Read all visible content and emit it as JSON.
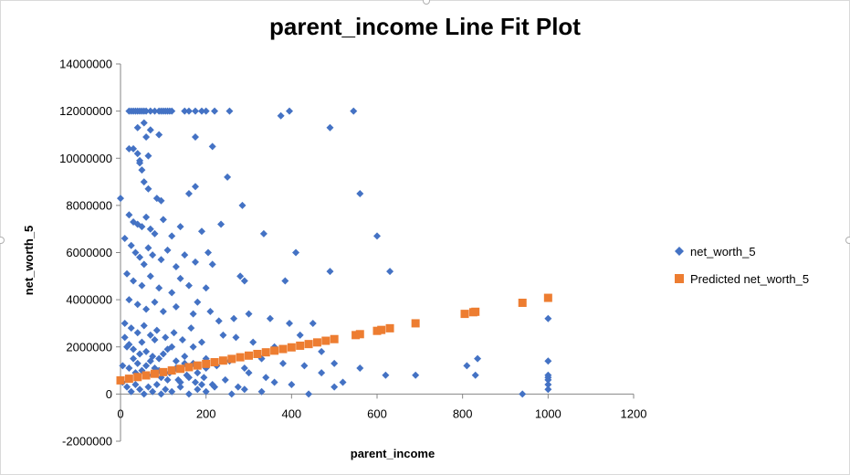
{
  "chart_data": {
    "type": "scatter",
    "title": "parent_income Line Fit  Plot",
    "xlabel": "parent_income",
    "ylabel": "net_worth_5",
    "xlim": [
      0,
      1200
    ],
    "ylim": [
      -2000000,
      14000000
    ],
    "x_ticks": [
      "0",
      "200",
      "400",
      "600",
      "800",
      "1000",
      "1200"
    ],
    "y_ticks": [
      "-2000000",
      "0",
      "2000000",
      "4000000",
      "6000000",
      "8000000",
      "10000000",
      "12000000",
      "14000000"
    ],
    "legend_position": "right",
    "grid": false,
    "series": [
      {
        "name": "net_worth_5",
        "marker": "diamond",
        "color": "#4472C4",
        "points": [
          [
            20,
            12000000
          ],
          [
            25,
            12000000
          ],
          [
            30,
            12000000
          ],
          [
            35,
            12000000
          ],
          [
            40,
            12000000
          ],
          [
            45,
            12000000
          ],
          [
            50,
            12000000
          ],
          [
            55,
            12000000
          ],
          [
            60,
            12000000
          ],
          [
            70,
            12000000
          ],
          [
            80,
            12000000
          ],
          [
            90,
            12000000
          ],
          [
            95,
            12000000
          ],
          [
            100,
            12000000
          ],
          [
            105,
            12000000
          ],
          [
            110,
            12000000
          ],
          [
            115,
            12000000
          ],
          [
            120,
            12000000
          ],
          [
            150,
            12000000
          ],
          [
            160,
            12000000
          ],
          [
            175,
            12000000
          ],
          [
            190,
            12000000
          ],
          [
            200,
            12000000
          ],
          [
            220,
            12000000
          ],
          [
            255,
            12000000
          ],
          [
            375,
            11800000
          ],
          [
            395,
            12000000
          ],
          [
            545,
            12000000
          ],
          [
            40,
            11300000
          ],
          [
            55,
            11500000
          ],
          [
            70,
            11200000
          ],
          [
            90,
            11000000
          ],
          [
            175,
            10900000
          ],
          [
            490,
            11300000
          ],
          [
            60,
            10900000
          ],
          [
            20,
            10400000
          ],
          [
            30,
            10400000
          ],
          [
            40,
            10200000
          ],
          [
            45,
            9900000
          ],
          [
            50,
            9500000
          ],
          [
            65,
            10100000
          ],
          [
            215,
            10500000
          ],
          [
            45,
            9800000
          ],
          [
            55,
            9000000
          ],
          [
            65,
            8700000
          ],
          [
            85,
            8300000
          ],
          [
            95,
            8200000
          ],
          [
            160,
            8500000
          ],
          [
            175,
            8800000
          ],
          [
            250,
            9200000
          ],
          [
            0,
            8300000
          ],
          [
            560,
            8500000
          ],
          [
            20,
            7600000
          ],
          [
            30,
            7300000
          ],
          [
            40,
            7200000
          ],
          [
            50,
            7100000
          ],
          [
            60,
            7500000
          ],
          [
            70,
            7000000
          ],
          [
            80,
            6800000
          ],
          [
            100,
            7400000
          ],
          [
            120,
            6700000
          ],
          [
            140,
            7100000
          ],
          [
            190,
            6900000
          ],
          [
            235,
            7200000
          ],
          [
            285,
            8000000
          ],
          [
            10,
            6600000
          ],
          [
            25,
            6300000
          ],
          [
            35,
            6000000
          ],
          [
            45,
            5800000
          ],
          [
            55,
            5500000
          ],
          [
            65,
            6200000
          ],
          [
            75,
            5900000
          ],
          [
            95,
            5700000
          ],
          [
            110,
            6100000
          ],
          [
            130,
            5400000
          ],
          [
            150,
            5900000
          ],
          [
            175,
            5600000
          ],
          [
            205,
            6000000
          ],
          [
            215,
            5500000
          ],
          [
            335,
            6800000
          ],
          [
            410,
            6000000
          ],
          [
            600,
            6700000
          ],
          [
            15,
            5100000
          ],
          [
            30,
            4800000
          ],
          [
            50,
            4600000
          ],
          [
            70,
            5000000
          ],
          [
            90,
            4500000
          ],
          [
            120,
            4300000
          ],
          [
            140,
            4900000
          ],
          [
            160,
            4600000
          ],
          [
            200,
            4500000
          ],
          [
            280,
            5000000
          ],
          [
            290,
            4800000
          ],
          [
            385,
            4800000
          ],
          [
            490,
            5200000
          ],
          [
            630,
            5200000
          ],
          [
            20,
            4000000
          ],
          [
            40,
            3800000
          ],
          [
            60,
            3600000
          ],
          [
            80,
            3900000
          ],
          [
            100,
            3500000
          ],
          [
            130,
            3700000
          ],
          [
            170,
            3400000
          ],
          [
            180,
            3900000
          ],
          [
            210,
            3500000
          ],
          [
            230,
            3100000
          ],
          [
            265,
            3200000
          ],
          [
            300,
            3400000
          ],
          [
            350,
            3200000
          ],
          [
            395,
            3000000
          ],
          [
            450,
            3000000
          ],
          [
            1000,
            3200000
          ],
          [
            10,
            3000000
          ],
          [
            25,
            2800000
          ],
          [
            40,
            2600000
          ],
          [
            55,
            2900000
          ],
          [
            70,
            2500000
          ],
          [
            85,
            2700000
          ],
          [
            105,
            2400000
          ],
          [
            125,
            2600000
          ],
          [
            145,
            2300000
          ],
          [
            165,
            2800000
          ],
          [
            190,
            2200000
          ],
          [
            240,
            2500000
          ],
          [
            270,
            2400000
          ],
          [
            310,
            2200000
          ],
          [
            360,
            2000000
          ],
          [
            420,
            2500000
          ],
          [
            470,
            1800000
          ],
          [
            810,
            1200000
          ],
          [
            15,
            2000000
          ],
          [
            30,
            1900000
          ],
          [
            45,
            1700000
          ],
          [
            60,
            1800000
          ],
          [
            75,
            1600000
          ],
          [
            90,
            1500000
          ],
          [
            110,
            1900000
          ],
          [
            130,
            1400000
          ],
          [
            150,
            1600000
          ],
          [
            170,
            1300000
          ],
          [
            200,
            1500000
          ],
          [
            225,
            1200000
          ],
          [
            255,
            1400000
          ],
          [
            290,
            1100000
          ],
          [
            330,
            1500000
          ],
          [
            380,
            1300000
          ],
          [
            430,
            1200000
          ],
          [
            500,
            1300000
          ],
          [
            560,
            1100000
          ],
          [
            835,
            1500000
          ],
          [
            1000,
            1400000
          ],
          [
            5,
            1200000
          ],
          [
            20,
            1100000
          ],
          [
            35,
            900000
          ],
          [
            50,
            1000000
          ],
          [
            65,
            800000
          ],
          [
            80,
            1100000
          ],
          [
            95,
            700000
          ],
          [
            115,
            900000
          ],
          [
            135,
            600000
          ],
          [
            155,
            800000
          ],
          [
            175,
            500000
          ],
          [
            195,
            700000
          ],
          [
            215,
            400000
          ],
          [
            245,
            600000
          ],
          [
            275,
            300000
          ],
          [
            300,
            900000
          ],
          [
            340,
            700000
          ],
          [
            400,
            400000
          ],
          [
            470,
            900000
          ],
          [
            520,
            500000
          ],
          [
            620,
            800000
          ],
          [
            690,
            800000
          ],
          [
            830,
            800000
          ],
          [
            1000,
            800000
          ],
          [
            1000,
            700000
          ],
          [
            5,
            500000
          ],
          [
            15,
            300000
          ],
          [
            25,
            100000
          ],
          [
            35,
            400000
          ],
          [
            45,
            200000
          ],
          [
            55,
            0
          ],
          [
            65,
            300000
          ],
          [
            75,
            100000
          ],
          [
            85,
            400000
          ],
          [
            95,
            0
          ],
          [
            105,
            200000
          ],
          [
            120,
            100000
          ],
          [
            140,
            300000
          ],
          [
            160,
            0
          ],
          [
            180,
            200000
          ],
          [
            200,
            100000
          ],
          [
            220,
            300000
          ],
          [
            260,
            0
          ],
          [
            290,
            200000
          ],
          [
            330,
            100000
          ],
          [
            360,
            500000
          ],
          [
            440,
            0
          ],
          [
            500,
            300000
          ],
          [
            940,
            0
          ],
          [
            1000,
            200000
          ],
          [
            1000,
            400000
          ],
          [
            1000,
            600000
          ],
          [
            10,
            2400000
          ],
          [
            20,
            2100000
          ],
          [
            30,
            1500000
          ],
          [
            40,
            1300000
          ],
          [
            50,
            2200000
          ],
          [
            60,
            1200000
          ],
          [
            70,
            1400000
          ],
          [
            80,
            2300000
          ],
          [
            90,
            1000000
          ],
          [
            100,
            1700000
          ],
          [
            110,
            600000
          ],
          [
            120,
            2000000
          ],
          [
            130,
            1100000
          ],
          [
            140,
            500000
          ],
          [
            150,
            1300000
          ],
          [
            160,
            700000
          ],
          [
            170,
            2000000
          ],
          [
            180,
            900000
          ],
          [
            190,
            400000
          ],
          [
            200,
            1100000
          ]
        ]
      },
      {
        "name": "Predicted net_worth_5",
        "marker": "square",
        "color": "#ED7D31",
        "points": [
          [
            0,
            580000
          ],
          [
            20,
            650000
          ],
          [
            40,
            720000
          ],
          [
            60,
            790000
          ],
          [
            80,
            860000
          ],
          [
            100,
            930000
          ],
          [
            120,
            1000000
          ],
          [
            140,
            1070000
          ],
          [
            160,
            1140000
          ],
          [
            180,
            1210000
          ],
          [
            200,
            1280000
          ],
          [
            220,
            1350000
          ],
          [
            240,
            1420000
          ],
          [
            260,
            1490000
          ],
          [
            280,
            1560000
          ],
          [
            300,
            1630000
          ],
          [
            320,
            1700000
          ],
          [
            340,
            1770000
          ],
          [
            360,
            1840000
          ],
          [
            380,
            1910000
          ],
          [
            400,
            1980000
          ],
          [
            420,
            2050000
          ],
          [
            440,
            2120000
          ],
          [
            460,
            2190000
          ],
          [
            480,
            2260000
          ],
          [
            500,
            2330000
          ],
          [
            550,
            2500000
          ],
          [
            560,
            2540000
          ],
          [
            600,
            2680000
          ],
          [
            610,
            2720000
          ],
          [
            630,
            2790000
          ],
          [
            690,
            3000000
          ],
          [
            805,
            3400000
          ],
          [
            825,
            3470000
          ],
          [
            830,
            3490000
          ],
          [
            940,
            3870000
          ],
          [
            1000,
            4080000
          ]
        ]
      }
    ]
  }
}
